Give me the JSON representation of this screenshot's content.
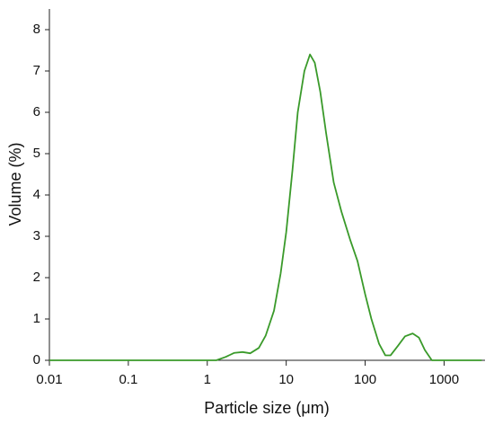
{
  "chart_data": {
    "type": "line",
    "x_label": "Particle size (μm)",
    "y_label": "Volume (%)",
    "x": [
      0.01,
      0.1,
      1,
      1.3,
      1.7,
      2.2,
      2.8,
      3.5,
      4.5,
      5.5,
      7,
      8.5,
      10,
      12,
      14,
      17,
      20,
      23,
      27,
      32,
      40,
      50,
      65,
      80,
      100,
      120,
      150,
      180,
      210,
      260,
      320,
      400,
      480,
      570,
      700,
      1000,
      3000
    ],
    "values": [
      0,
      0,
      0,
      0,
      0.08,
      0.18,
      0.2,
      0.17,
      0.3,
      0.6,
      1.2,
      2.1,
      3.1,
      4.6,
      6.0,
      7.0,
      7.4,
      7.2,
      6.5,
      5.5,
      4.3,
      3.6,
      2.9,
      2.4,
      1.6,
      1.0,
      0.4,
      0.12,
      0.12,
      0.35,
      0.58,
      0.65,
      0.55,
      0.25,
      0,
      0,
      0
    ],
    "color": "#3a9a2a",
    "xscale": "log",
    "xlim": [
      0.01,
      3300
    ],
    "xticks": [
      0.01,
      0.1,
      1,
      10,
      100,
      1000
    ],
    "ylim": [
      0,
      8.5
    ],
    "yticks": [
      0,
      1,
      2,
      3,
      4,
      5,
      6,
      7,
      8
    ]
  }
}
